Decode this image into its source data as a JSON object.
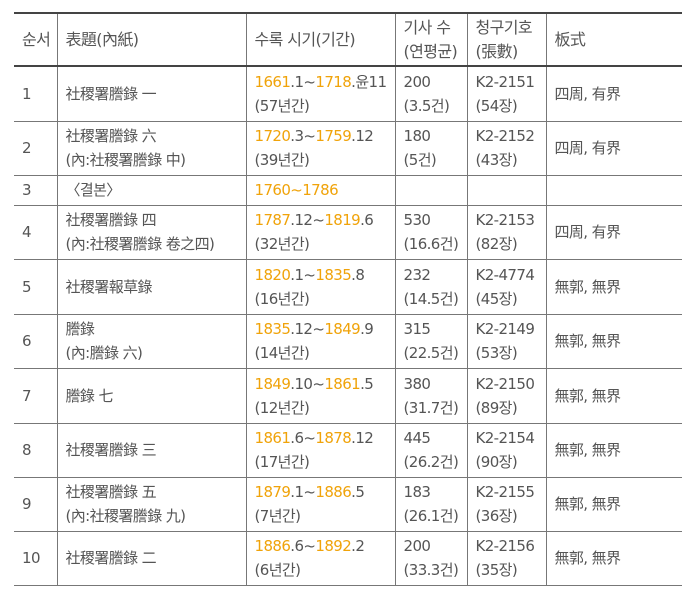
{
  "headers": [
    {
      "line1": "순서",
      "line2": ""
    },
    {
      "line1": "表題(內紙)",
      "line2": ""
    },
    {
      "line1": "수록 시기(기간)",
      "line2": ""
    },
    {
      "line1": "기사 수",
      "line2": "(연평균)"
    },
    {
      "line1": "청구기호",
      "line2": "(張數)"
    },
    {
      "line1": "板式",
      "line2": ""
    }
  ],
  "highlight_color": "#f0a30a",
  "rows": [
    {
      "no": "1",
      "title": "社稷署謄錄 一",
      "title2": "",
      "period": [
        {
          "t": "1661",
          "h": true
        },
        {
          "t": ".1~",
          "h": false
        },
        {
          "t": "1718",
          "h": true
        },
        {
          "t": ".윤11",
          "h": false
        }
      ],
      "duration": "(57년간)",
      "count": "200",
      "avg": "(3.5건)",
      "code": "K2-2151",
      "pages": "(54장)",
      "format": "四周, 有界",
      "height": 55
    },
    {
      "no": "2",
      "title": "社稷署謄錄 六",
      "title2": "(內:社稷署謄錄 中)",
      "period": [
        {
          "t": "1720",
          "h": true
        },
        {
          "t": ".3~",
          "h": false
        },
        {
          "t": "1759",
          "h": true
        },
        {
          "t": ".12",
          "h": false
        }
      ],
      "duration": "(39년간)",
      "count": "180",
      "avg": "(5건)",
      "code": "K2-2152",
      "pages": "(43장)",
      "format": "四周, 有界",
      "height": 54
    },
    {
      "no": "3",
      "title": "〈결본〉",
      "title2": "",
      "period": [
        {
          "t": "1760~1786",
          "h": true
        }
      ],
      "duration": "",
      "count": "",
      "avg": "",
      "code": "",
      "pages": "",
      "format": "",
      "height": 30
    },
    {
      "no": "4",
      "title": "社稷署謄錄 四",
      "title2": "(內:社稷署謄錄 卷之四)",
      "period": [
        {
          "t": "1787",
          "h": true
        },
        {
          "t": ".12~",
          "h": false
        },
        {
          "t": "1819",
          "h": true
        },
        {
          "t": ".6",
          "h": false
        }
      ],
      "duration": "(32년간)",
      "count": "530",
      "avg": "(16.6건)",
      "code": "K2-2153",
      "pages": "(82장)",
      "format": "四周, 有界",
      "height": 54
    },
    {
      "no": "5",
      "title": "社稷署報草錄",
      "title2": "",
      "period": [
        {
          "t": "1820",
          "h": true
        },
        {
          "t": ".1~",
          "h": false
        },
        {
          "t": "1835",
          "h": true
        },
        {
          "t": ".8",
          "h": false
        }
      ],
      "duration": "(16년간)",
      "count": "232",
      "avg": "(14.5건)",
      "code": "K2-4774",
      "pages": "(45장)",
      "format": "無郭, 無界",
      "height": 55
    },
    {
      "no": "6",
      "title": "謄錄",
      "title2": "(內:謄錄 六)",
      "period": [
        {
          "t": "1835",
          "h": true
        },
        {
          "t": ".12~",
          "h": false
        },
        {
          "t": "1849",
          "h": true
        },
        {
          "t": ".9",
          "h": false
        }
      ],
      "duration": "(14년간)",
      "count": "315",
      "avg": "(22.5건)",
      "code": "K2-2149",
      "pages": "(53장)",
      "format": "無郭, 無界",
      "height": 54
    },
    {
      "no": "7",
      "title": "謄錄 七",
      "title2": "",
      "period": [
        {
          "t": "1849",
          "h": true
        },
        {
          "t": ".10~",
          "h": false
        },
        {
          "t": "1861",
          "h": true
        },
        {
          "t": ".5",
          "h": false
        }
      ],
      "duration": "(12년간)",
      "count": "380",
      "avg": "(31.7건)",
      "code": "K2-2150",
      "pages": "(89장)",
      "format": "無郭, 無界",
      "height": 55
    },
    {
      "no": "8",
      "title": "社稷署謄錄 三",
      "title2": "",
      "period": [
        {
          "t": "1861",
          "h": true
        },
        {
          "t": ".6~",
          "h": false
        },
        {
          "t": "1878",
          "h": true
        },
        {
          "t": ".12",
          "h": false
        }
      ],
      "duration": "(17년간)",
      "count": "445",
      "avg": "(26.2건)",
      "code": "K2-2154",
      "pages": "(90장)",
      "format": "無郭, 無界",
      "height": 54
    },
    {
      "no": "9",
      "title": "社稷署謄錄 五",
      "title2": "(內:社稷署謄錄 九)",
      "period": [
        {
          "t": "1879",
          "h": true
        },
        {
          "t": ".1~",
          "h": false
        },
        {
          "t": "1886",
          "h": true
        },
        {
          "t": ".5",
          "h": false
        }
      ],
      "duration": "(7년간)",
      "count": "183",
      "avg": "(26.1건)",
      "code": "K2-2155",
      "pages": "(36장)",
      "format": "無郭, 無界",
      "height": 54
    },
    {
      "no": "10",
      "title": "社稷署謄錄 二",
      "title2": "",
      "period": [
        {
          "t": "1886",
          "h": true
        },
        {
          "t": ".6~",
          "h": false
        },
        {
          "t": "1892",
          "h": true
        },
        {
          "t": ".2",
          "h": false
        }
      ],
      "duration": "(6년간)",
      "count": "200",
      "avg": "(33.3건)",
      "code": "K2-2156",
      "pages": "(35장)",
      "format": "無郭, 無界",
      "height": 54
    }
  ]
}
